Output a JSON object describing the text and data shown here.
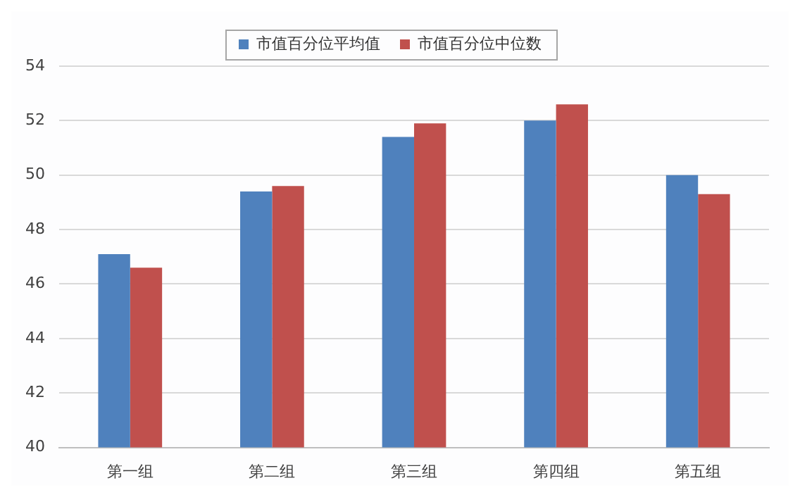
{
  "chart_data": {
    "type": "bar",
    "categories": [
      "第一组",
      "第二组",
      "第三组",
      "第四组",
      "第五组"
    ],
    "series": [
      {
        "name": "市值百分位平均值",
        "color": "#4f81bd",
        "values": [
          47.1,
          49.4,
          51.4,
          52.0,
          50.0
        ]
      },
      {
        "name": "市值百分位中位数",
        "color": "#c0504d",
        "values": [
          46.6,
          49.6,
          51.9,
          52.6,
          49.3
        ]
      }
    ],
    "ylim": [
      40,
      54
    ],
    "yticks": [
      40,
      42,
      44,
      46,
      48,
      50,
      52,
      54
    ],
    "grid": "y",
    "legend": "top"
  }
}
